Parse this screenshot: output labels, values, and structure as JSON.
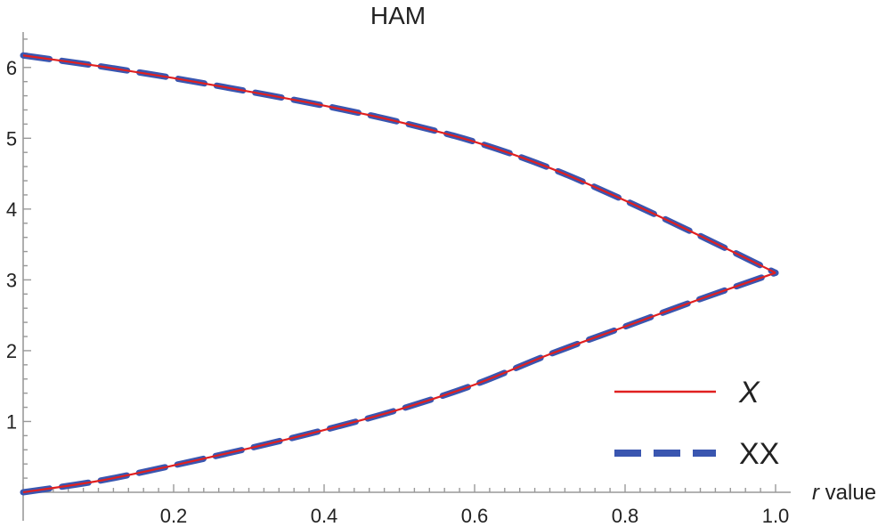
{
  "chart_data": {
    "type": "line",
    "title": "HAM",
    "xlabel": "r value",
    "ylabel": "",
    "xlim": [
      0,
      1.0
    ],
    "ylim": [
      0,
      6.5
    ],
    "x_ticks": [
      "0.2",
      "0.4",
      "0.6",
      "0.8",
      "1.0"
    ],
    "x_tick_values": [
      0.2,
      0.4,
      0.6,
      0.8,
      1.0
    ],
    "y_ticks": [
      "1",
      "2",
      "3",
      "4",
      "5",
      "6"
    ],
    "y_tick_values": [
      1,
      2,
      3,
      4,
      5,
      6
    ],
    "grid": false,
    "legend_position": "bottom-right",
    "series": [
      {
        "name": "X",
        "style": "solid",
        "color": "#e02020",
        "upper": {
          "x": [
            0,
            0.1,
            0.2,
            0.3,
            0.4,
            0.5,
            0.6,
            0.7,
            0.8,
            0.9,
            1.0
          ],
          "y": [
            6.17,
            6.02,
            5.85,
            5.66,
            5.46,
            5.23,
            4.95,
            4.58,
            4.12,
            3.62,
            3.1
          ]
        },
        "lower": {
          "x": [
            0,
            0.1,
            0.2,
            0.3,
            0.4,
            0.5,
            0.6,
            0.7,
            0.8,
            0.9,
            1.0
          ],
          "y": [
            0.0,
            0.16,
            0.38,
            0.62,
            0.88,
            1.17,
            1.52,
            1.95,
            2.34,
            2.73,
            3.1
          ]
        }
      },
      {
        "name": "XX",
        "style": "dashed",
        "color": "#3a56b0",
        "upper": {
          "x": [
            0,
            0.1,
            0.2,
            0.3,
            0.4,
            0.5,
            0.6,
            0.7,
            0.8,
            0.9,
            1.0
          ],
          "y": [
            6.17,
            6.02,
            5.85,
            5.66,
            5.46,
            5.23,
            4.95,
            4.58,
            4.12,
            3.62,
            3.1
          ]
        },
        "lower": {
          "x": [
            0,
            0.1,
            0.2,
            0.3,
            0.4,
            0.5,
            0.6,
            0.7,
            0.8,
            0.9,
            1.0
          ],
          "y": [
            0.0,
            0.16,
            0.38,
            0.62,
            0.88,
            1.17,
            1.52,
            1.95,
            2.34,
            2.73,
            3.1
          ]
        }
      }
    ]
  }
}
